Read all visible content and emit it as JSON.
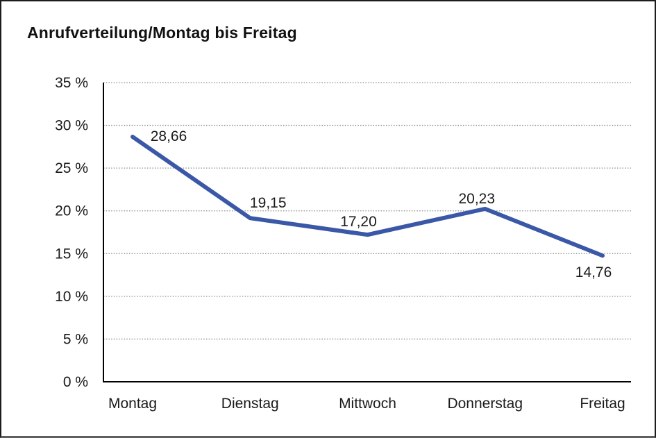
{
  "window": {
    "background": "#ffffff",
    "border_color": "#1c1c1c"
  },
  "chart_data": {
    "type": "line",
    "title": "Anrufverteilung/Montag bis Freitag",
    "categories": [
      "Montag",
      "Dienstag",
      "Mittwoch",
      "Donnerstag",
      "Freitag"
    ],
    "values": [
      28.66,
      19.15,
      17.2,
      20.23,
      14.76
    ],
    "value_labels": [
      "28,66",
      "19,15",
      "17,20",
      "20,23",
      "14,76"
    ],
    "xlabel": "",
    "ylabel": "",
    "ylim": [
      0,
      35
    ],
    "ytick_step": 5,
    "ytick_labels": [
      "0 %",
      "5 %",
      "10 %",
      "15 %",
      "20 %",
      "25 %",
      "30 %",
      "35 %"
    ],
    "grid": "horizontal dotted",
    "legend": "none",
    "line_color": "#3A58A7",
    "text_color": "#1a1a1a",
    "grid_color": "#8c8c8c",
    "axis_color": "#000000"
  }
}
